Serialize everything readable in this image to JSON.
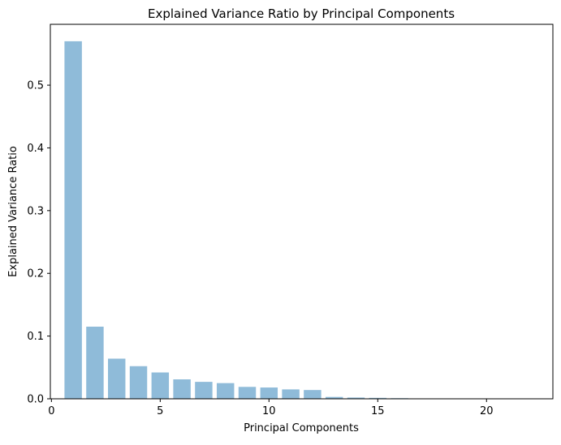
{
  "chart_data": {
    "type": "bar",
    "title": "Explained Variance Ratio by Principal Components",
    "xlabel": "Principal Components",
    "ylabel": "Explained Variance Ratio",
    "bar_color": "#1f77b4",
    "bar_opacity": 0.5,
    "xlim": [
      -0.05,
      23.05
    ],
    "ylim": [
      0,
      0.597
    ],
    "x": [
      1,
      2,
      3,
      4,
      5,
      6,
      7,
      8,
      9,
      10,
      11,
      12,
      13,
      14,
      15,
      16,
      17,
      18,
      19,
      20,
      21,
      22
    ],
    "values": [
      0.57,
      0.115,
      0.064,
      0.052,
      0.042,
      0.031,
      0.027,
      0.025,
      0.019,
      0.018,
      0.015,
      0.014,
      0.003,
      0.002,
      0.0015,
      0.001,
      0.0005,
      0.0003,
      0.0002,
      0.0001,
      0.0001,
      0.0001
    ],
    "bar_width": 0.8,
    "xticks": [
      "0",
      "5",
      "10",
      "15",
      "20"
    ],
    "yticks": [
      "0.0",
      "0.1",
      "0.2",
      "0.3",
      "0.4",
      "0.5"
    ],
    "grid": false,
    "legend": false
  }
}
